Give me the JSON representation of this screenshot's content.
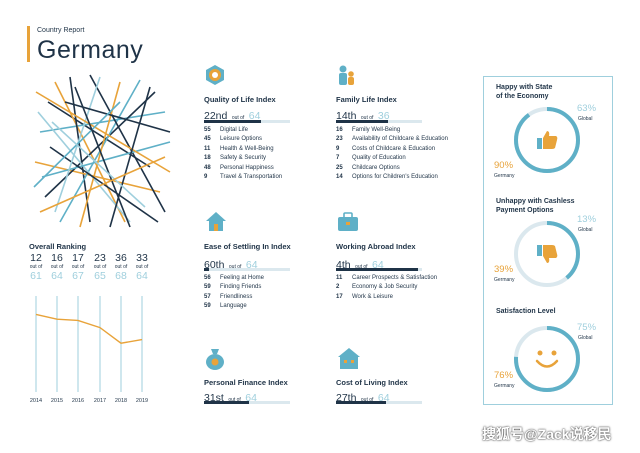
{
  "header": {
    "report_label": "Country Report",
    "country": "Germany"
  },
  "overall": {
    "title": "Overall Ranking",
    "out_of_label": "out of",
    "ranks": [
      {
        "rank": "12",
        "total": "61",
        "year": "2014"
      },
      {
        "rank": "16",
        "total": "64",
        "year": "2015"
      },
      {
        "rank": "17",
        "total": "67",
        "year": "2016"
      },
      {
        "rank": "23",
        "total": "65",
        "year": "2017"
      },
      {
        "rank": "36",
        "total": "68",
        "year": "2018"
      },
      {
        "rank": "33",
        "total": "64",
        "year": "2019"
      }
    ]
  },
  "indices": {
    "quality_of_life": {
      "title": "Quality of Life Index",
      "rank": "22nd",
      "out_of": "out of",
      "total": "64",
      "progress": 0.66,
      "items": [
        {
          "num": "55",
          "label": "Digital Life"
        },
        {
          "num": "45",
          "label": "Leisure Options"
        },
        {
          "num": "11",
          "label": "Health & Well-Being"
        },
        {
          "num": "18",
          "label": "Safety & Security"
        },
        {
          "num": "48",
          "label": "Personal Happiness"
        },
        {
          "num": "9",
          "label": "Travel & Transportation"
        }
      ]
    },
    "family_life": {
      "title": "Family Life Index",
      "rank": "14th",
      "out_of": "out of",
      "total": "36",
      "progress": 0.61,
      "items": [
        {
          "num": "16",
          "label": "Family Well-Being"
        },
        {
          "num": "23",
          "label": "Availability of Childcare & Education"
        },
        {
          "num": "9",
          "label": "Costs of Childcare & Education"
        },
        {
          "num": "7",
          "label": "Quality of Education"
        },
        {
          "num": "25",
          "label": "Childcare Options"
        },
        {
          "num": "14",
          "label": "Options for Children's Education"
        }
      ]
    },
    "ease_of_settling": {
      "title": "Ease of Settling In Index",
      "rank": "60th",
      "out_of": "out of",
      "total": "64",
      "progress": 0.06,
      "items": [
        {
          "num": "56",
          "label": "Feeling at Home"
        },
        {
          "num": "59",
          "label": "Finding Friends"
        },
        {
          "num": "57",
          "label": "Friendliness"
        },
        {
          "num": "59",
          "label": "Language"
        }
      ]
    },
    "working_abroad": {
      "title": "Working Abroad Index",
      "rank": "4th",
      "out_of": "out of",
      "total": "64",
      "progress": 0.95,
      "items": [
        {
          "num": "11",
          "label": "Career Prospects & Satisfaction"
        },
        {
          "num": "2",
          "label": "Economy & Job Security"
        },
        {
          "num": "17",
          "label": "Work & Leisure"
        }
      ]
    },
    "personal_finance": {
      "title": "Personal Finance Index",
      "rank": "31st",
      "out_of": "out of",
      "total": "64",
      "progress": 0.52
    },
    "cost_of_living": {
      "title": "Cost of Living Index",
      "rank": "27th",
      "out_of": "out of",
      "total": "64",
      "progress": 0.58
    }
  },
  "panel": {
    "happy_economy": {
      "title_line1": "Happy with State",
      "title_line2": "of the Economy",
      "global_pct": "63%",
      "global_label": "Global",
      "germany_pct": "90%",
      "germany_label": "Germany",
      "germany_value": 0.9,
      "icon": "thumbs-up-icon"
    },
    "cashless": {
      "title_line1": "Unhappy with Cashless",
      "title_line2": "Payment Options",
      "global_pct": "13%",
      "global_label": "Global",
      "germany_pct": "39%",
      "germany_label": "Germany",
      "germany_value": 0.39,
      "icon": "thumbs-down-icon"
    },
    "satisfaction": {
      "title_line1": "Satisfaction Level",
      "global_pct": "75%",
      "global_label": "Global",
      "germany_pct": "76%",
      "germany_label": "Germany",
      "germany_value": 0.76,
      "icon": "smiley-icon"
    }
  },
  "watermark": "搜狐号@Zack说移民",
  "colors": {
    "navy": "#1f3347",
    "teal": "#5fb0c7",
    "light_teal": "#9fcfdd",
    "orange": "#e8a33a"
  }
}
